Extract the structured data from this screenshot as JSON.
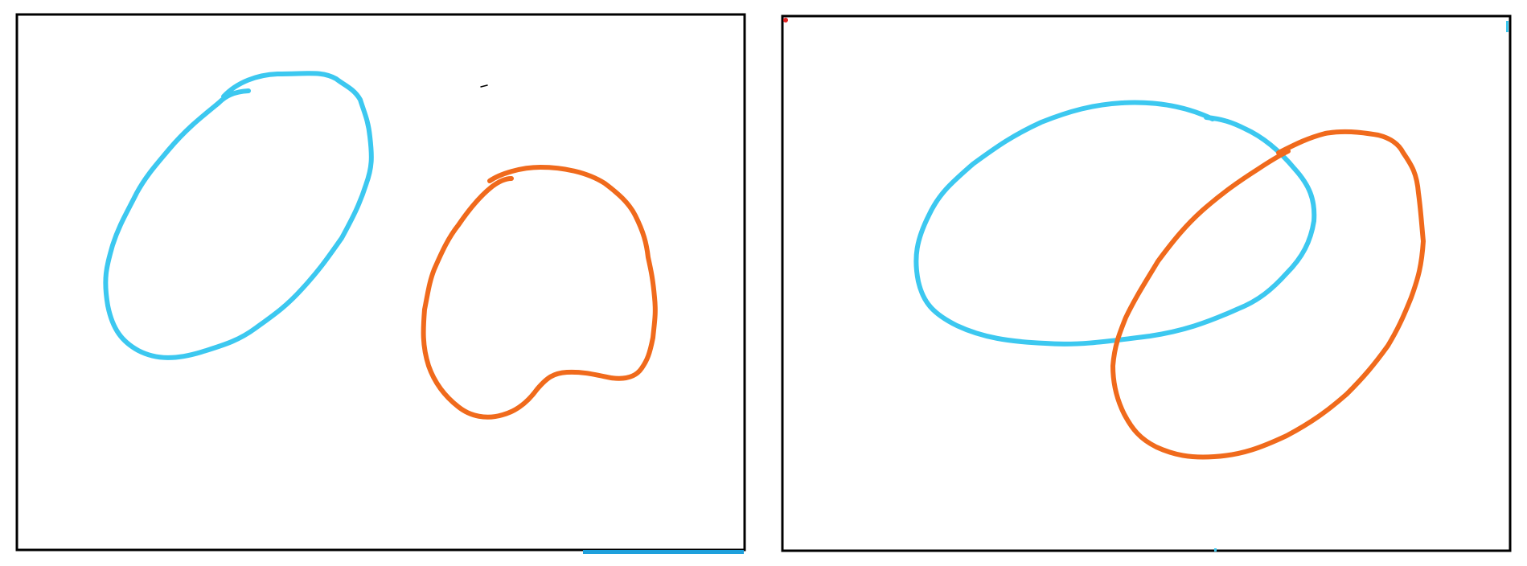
{
  "panels": [
    {
      "name": "left",
      "shapes": [
        {
          "name": "blue-loop",
          "color_key": "blue"
        },
        {
          "name": "orange-loop",
          "color_key": "orange"
        }
      ],
      "relationship": "separate"
    },
    {
      "name": "right",
      "shapes": [
        {
          "name": "blue-loop",
          "color_key": "blue"
        },
        {
          "name": "orange-loop",
          "color_key": "orange"
        }
      ],
      "relationship": "overlapping"
    }
  ],
  "colors": {
    "blue": "#3cc8f0",
    "orange": "#f06a1c",
    "frame": "#000000",
    "red_dot": "#e02020",
    "bar": "#1ea0dc"
  }
}
